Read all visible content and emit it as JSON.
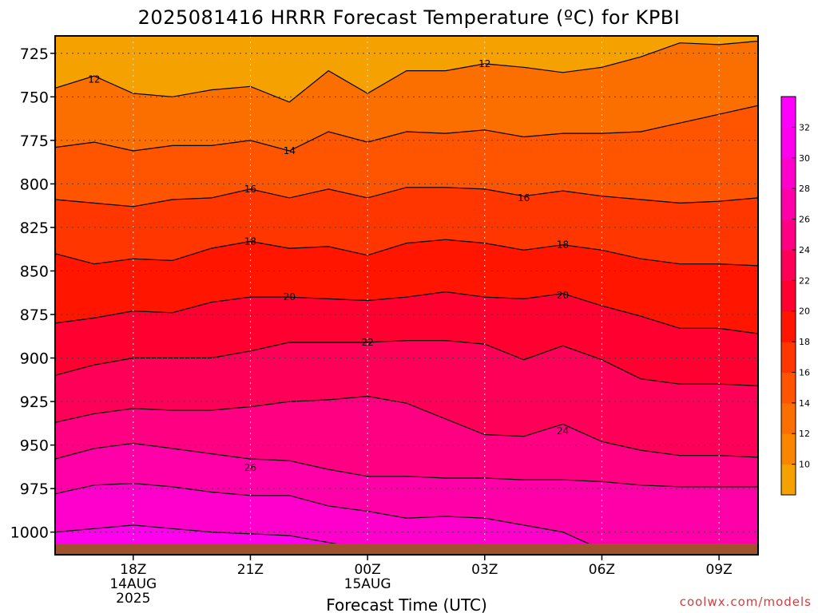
{
  "chart_data": {
    "type": "heatmap",
    "title": "2025081416 HRRR Forecast Temperature (ºC) for KPBI",
    "xlabel": "Forecast Time (UTC)",
    "ylabel": "",
    "credit": "coolwx.com/models",
    "x_range_hours_utc": [
      "2025-08-14 16Z",
      "2025-08-15 10Z"
    ],
    "x_ticks": [
      {
        "label": "18Z",
        "sub": [
          "14AUG",
          "2025"
        ]
      },
      {
        "label": "21Z",
        "sub": []
      },
      {
        "label": "00Z",
        "sub": [
          "15AUG"
        ]
      },
      {
        "label": "03Z",
        "sub": []
      },
      {
        "label": "06Z",
        "sub": []
      },
      {
        "label": "09Z",
        "sub": []
      }
    ],
    "y_ticks": [
      "725",
      "750",
      "775",
      "800",
      "825",
      "850",
      "875",
      "900",
      "925",
      "950",
      "975",
      "1000"
    ],
    "y_range_hpa": [
      715,
      1013
    ],
    "y_inverted": true,
    "grid": true,
    "colorbar": {
      "ticks": [
        "10",
        "12",
        "14",
        "16",
        "18",
        "20",
        "22",
        "24",
        "26",
        "28",
        "30",
        "32"
      ],
      "colors": [
        "#f5a200",
        "#fa8600",
        "#fb6e00",
        "#ff5400",
        "#ff3600",
        "#ff1500",
        "#ff0030",
        "#ff0058",
        "#ff0082",
        "#ff00a8",
        "#ff00cc",
        "#ff00ee",
        "#ff00ff"
      ]
    },
    "contour_labels": [
      {
        "text": "12",
        "hour": 17.0,
        "hpa": 740
      },
      {
        "text": "12",
        "hour": 27.0,
        "hpa": 731
      },
      {
        "text": "14",
        "hour": 22.0,
        "hpa": 781
      },
      {
        "text": "16",
        "hour": 21.0,
        "hpa": 803
      },
      {
        "text": "16",
        "hour": 28.0,
        "hpa": 808
      },
      {
        "text": "18",
        "hour": 21.0,
        "hpa": 833
      },
      {
        "text": "18",
        "hour": 29.0,
        "hpa": 835
      },
      {
        "text": "20",
        "hour": 22.0,
        "hpa": 865
      },
      {
        "text": "20",
        "hour": 29.0,
        "hpa": 864
      },
      {
        "text": "22",
        "hour": 24.0,
        "hpa": 891
      },
      {
        "text": "24",
        "hour": 29.0,
        "hpa": 942
      },
      {
        "text": "26",
        "hour": 21.0,
        "hpa": 963
      }
    ],
    "temperature_level_hpa": [
      {
        "temp": 12,
        "hours": [
          16,
          17,
          18,
          19,
          20,
          21,
          22,
          23,
          24,
          25,
          26,
          27,
          28,
          29,
          30,
          31,
          32,
          33,
          34
        ],
        "hpa": [
          745,
          738,
          748,
          750,
          746,
          744,
          753,
          735,
          748,
          735,
          735,
          731,
          733,
          736,
          733,
          727,
          719,
          720,
          718
        ]
      },
      {
        "temp": 14,
        "hours": [
          16,
          17,
          18,
          19,
          20,
          21,
          22,
          23,
          24,
          25,
          26,
          27,
          28,
          29,
          30,
          31,
          32,
          33,
          34
        ],
        "hpa": [
          779,
          776,
          781,
          778,
          778,
          775,
          781,
          770,
          776,
          770,
          771,
          769,
          773,
          771,
          771,
          770,
          765,
          760,
          755
        ]
      },
      {
        "temp": 16,
        "hours": [
          16,
          17,
          18,
          19,
          20,
          21,
          22,
          23,
          24,
          25,
          26,
          27,
          28,
          29,
          30,
          31,
          32,
          33,
          34
        ],
        "hpa": [
          809,
          811,
          813,
          809,
          808,
          803,
          808,
          803,
          808,
          802,
          802,
          803,
          807,
          804,
          807,
          809,
          811,
          810,
          808
        ]
      },
      {
        "temp": 18,
        "hours": [
          16,
          17,
          18,
          19,
          20,
          21,
          22,
          23,
          24,
          25,
          26,
          27,
          28,
          29,
          30,
          31,
          32,
          33,
          34
        ],
        "hpa": [
          840,
          846,
          843,
          844,
          837,
          833,
          837,
          836,
          841,
          834,
          832,
          834,
          838,
          835,
          838,
          843,
          846,
          846,
          847
        ]
      },
      {
        "temp": 20,
        "hours": [
          16,
          17,
          18,
          19,
          20,
          21,
          22,
          23,
          24,
          25,
          26,
          27,
          28,
          29,
          30,
          31,
          32,
          33,
          34
        ],
        "hpa": [
          880,
          877,
          873,
          874,
          868,
          865,
          865,
          866,
          867,
          865,
          862,
          865,
          866,
          863,
          870,
          876,
          883,
          883,
          886
        ]
      },
      {
        "temp": 22,
        "hours": [
          16,
          17,
          18,
          19,
          20,
          21,
          22,
          23,
          24,
          25,
          26,
          27,
          28,
          29,
          30,
          31,
          32,
          33,
          34
        ],
        "hpa": [
          910,
          904,
          900,
          900,
          900,
          896,
          891,
          891,
          891,
          890,
          890,
          892,
          901,
          893,
          901,
          912,
          915,
          915,
          916
        ]
      },
      {
        "temp": 24,
        "hours": [
          16,
          17,
          18,
          19,
          20,
          21,
          22,
          23,
          24,
          25,
          26,
          27,
          28,
          29,
          30,
          31,
          32,
          33,
          34
        ],
        "hpa": [
          937,
          932,
          929,
          930,
          930,
          928,
          925,
          924,
          922,
          926,
          935,
          944,
          945,
          938,
          948,
          953,
          956,
          956,
          957
        ]
      },
      {
        "temp": 26,
        "hours": [
          16,
          17,
          18,
          19,
          20,
          21,
          22,
          23,
          24,
          25,
          26,
          27,
          28,
          29,
          30,
          31,
          32,
          33,
          34
        ],
        "hpa": [
          958,
          952,
          949,
          952,
          955,
          958,
          959,
          964,
          968,
          968,
          969,
          969,
          970,
          970,
          971,
          973,
          974,
          974,
          974
        ]
      },
      {
        "temp": 28,
        "hours": [
          16,
          17,
          18,
          19,
          20,
          21,
          22,
          23,
          24,
          25,
          26,
          27,
          28,
          29,
          30,
          31,
          32,
          33,
          34
        ],
        "hpa": [
          978,
          973,
          972,
          974,
          977,
          979,
          979,
          985,
          988,
          992,
          991,
          992,
          996,
          1000,
          1010,
          1013,
          1013,
          1013,
          1013
        ]
      },
      {
        "temp": 30,
        "hours": [
          16,
          17,
          18,
          19,
          20,
          21,
          22,
          23,
          24,
          25,
          26,
          27,
          28,
          29,
          30
        ],
        "hpa": [
          1000,
          998,
          996,
          998,
          1000,
          1001,
          1002,
          1006,
          1010,
          1013,
          1013,
          1013,
          1013,
          1013,
          1013
        ]
      },
      {
        "temp": 32,
        "hours": [
          16,
          17,
          18,
          19,
          20,
          21,
          22,
          23,
          24
        ],
        "hpa": [
          1013,
          1012,
          1010,
          1011,
          1013,
          1013,
          1013,
          1013,
          1013
        ]
      }
    ]
  }
}
